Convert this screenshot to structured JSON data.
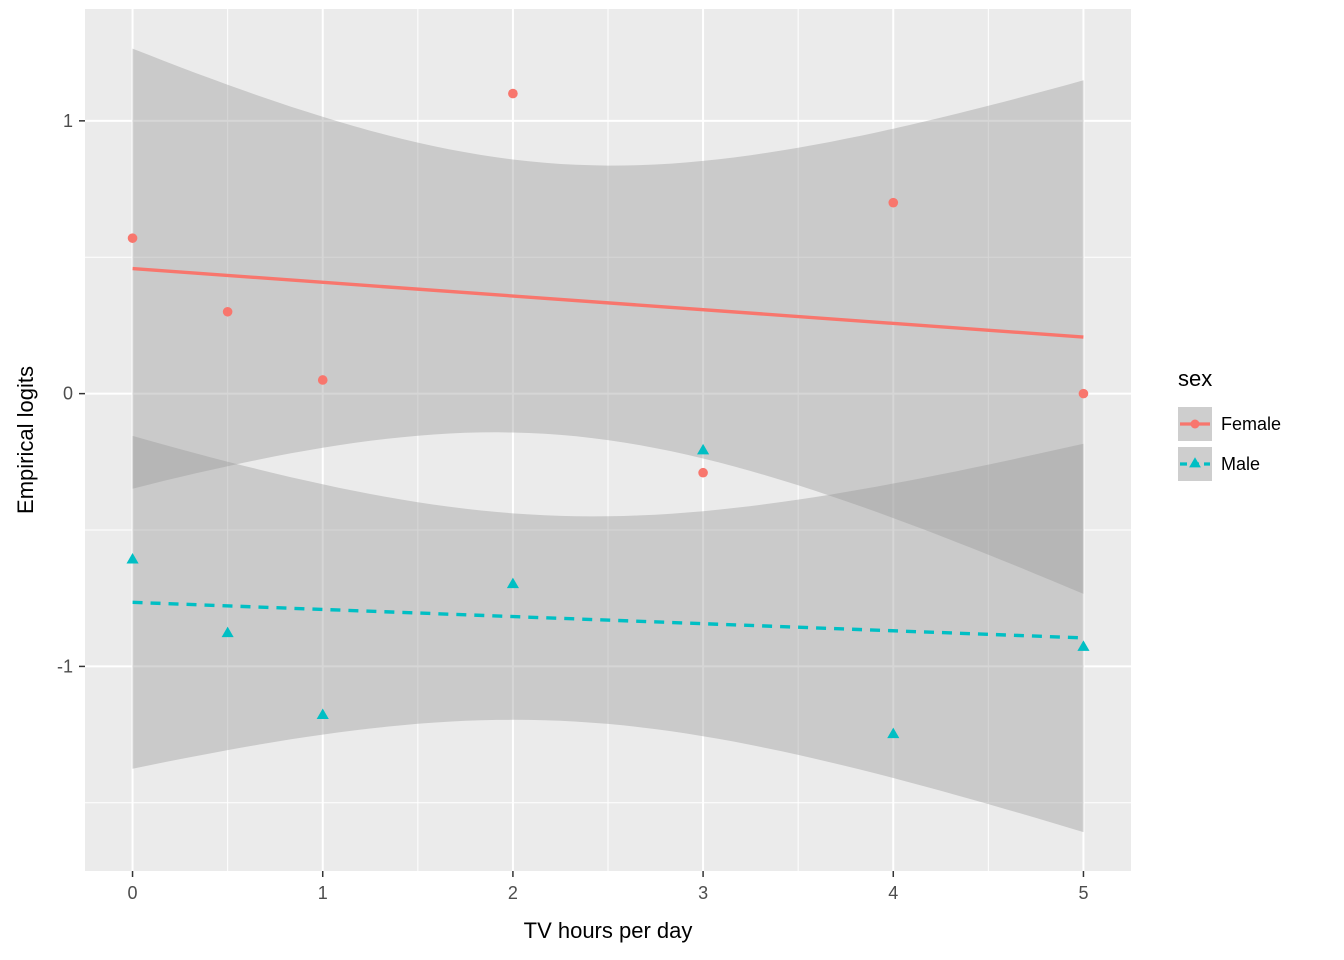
{
  "figure": {
    "background": "#FFFFFF",
    "panel_background": "#EBEBEB",
    "grid_color": "#FFFFFF",
    "tick_color": "#333333",
    "tick_label_color": "#4D4D4D"
  },
  "chart_data": {
    "type": "scatter",
    "title": "",
    "xlabel": "TV hours per day",
    "ylabel": "Empirical logits",
    "xlim": [
      -0.25,
      5.25
    ],
    "ylim": [
      -1.75,
      1.41
    ],
    "x_major_ticks": [
      0,
      1,
      2,
      3,
      4,
      5
    ],
    "x_minor_ticks": [
      0.5,
      1.5,
      2.5,
      3.5,
      4.5
    ],
    "y_major_ticks": [
      -1,
      0,
      1
    ],
    "y_minor_ticks": [
      -1.5,
      -0.5,
      0.5
    ],
    "grid": true,
    "legend": {
      "title": "sex",
      "position": "right"
    },
    "smooth": {
      "method": "lm",
      "ci_level": 0.95,
      "span_x": [
        0,
        5
      ],
      "ribbon_color": "#999999",
      "ribbon_alpha": 0.4
    },
    "series": [
      {
        "name": "Female",
        "color": "#F8766D",
        "shape": "circle",
        "linetype": "solid",
        "points": [
          [
            0,
            0.57
          ],
          [
            0.5,
            0.3
          ],
          [
            1,
            0.05
          ],
          [
            2,
            1.1
          ],
          [
            3,
            -0.29
          ],
          [
            4,
            0.7
          ],
          [
            5,
            0.0
          ]
        ]
      },
      {
        "name": "Male",
        "color": "#00BFC4",
        "shape": "triangle",
        "linetype": "dashed",
        "points": [
          [
            0,
            -0.61
          ],
          [
            0.5,
            -0.88
          ],
          [
            1,
            -1.18
          ],
          [
            2,
            -0.7
          ],
          [
            3,
            -0.21
          ],
          [
            4,
            -1.25
          ],
          [
            5,
            -0.93
          ]
        ]
      }
    ]
  }
}
